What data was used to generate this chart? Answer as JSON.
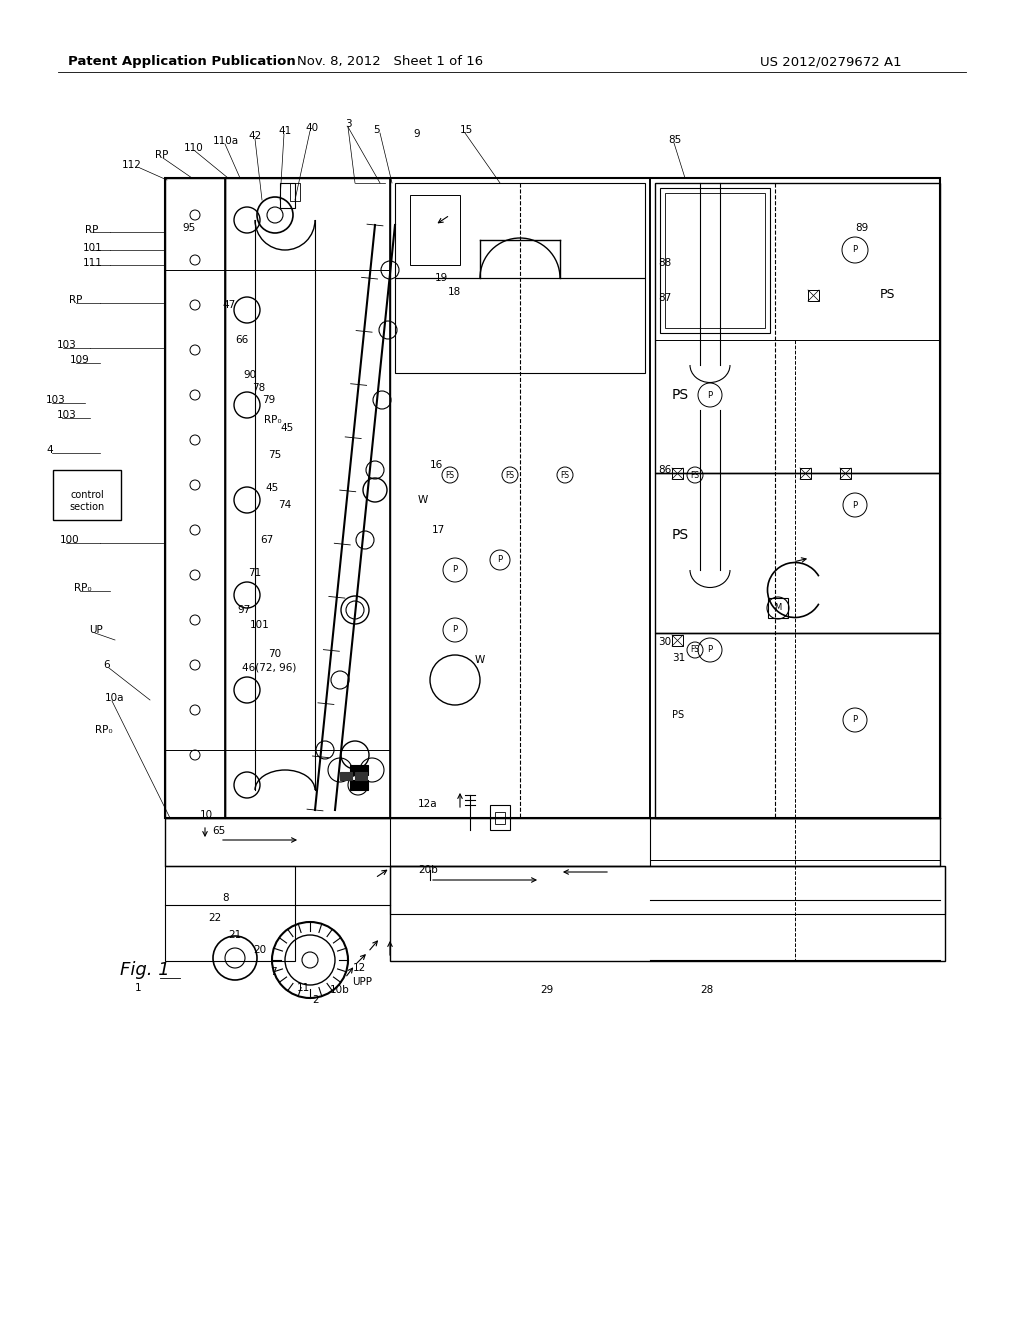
{
  "bg_color": "#ffffff",
  "header_left": "Patent Application Publication",
  "header_mid": "Nov. 8, 2012   Sheet 1 of 16",
  "header_right": "US 2012/0279672 A1",
  "fig_label": "Fig. 1",
  "fig_number": "1"
}
